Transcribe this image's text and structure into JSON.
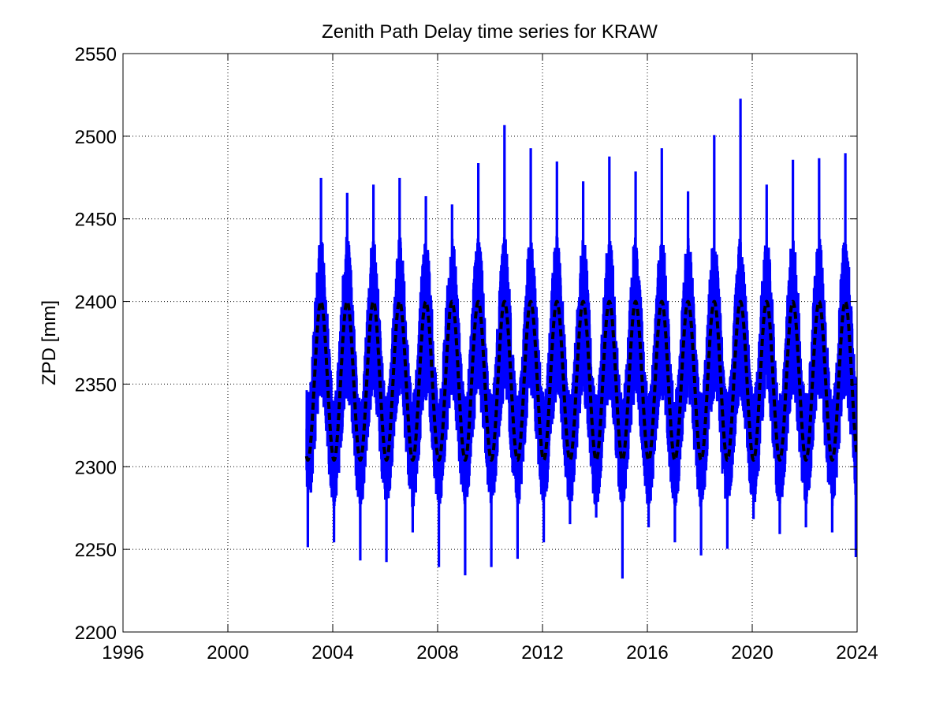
{
  "chart_data": {
    "type": "line",
    "title": "Zenith Path Delay time series for KRAW",
    "xlabel": "",
    "ylabel": "ZPD [mm]",
    "xlim": [
      1996,
      2024
    ],
    "ylim": [
      2200,
      2550
    ],
    "x_ticks": [
      "1996",
      "2000",
      "2004",
      "2008",
      "2012",
      "2016",
      "2020",
      "2024"
    ],
    "y_ticks": [
      "2200",
      "2250",
      "2300",
      "2350",
      "2400",
      "2450",
      "2500",
      "2550"
    ],
    "grid": "on",
    "colors": {
      "observed": "#0000ff",
      "seasonal_model": "#000000"
    },
    "series": [
      {
        "style": "solid",
        "color": "#0000ff",
        "data_range": [
          2003.0,
          2024.0
        ],
        "seasonal_envelope": {
          "summer_max": [
            [
              2003.55,
              2474
            ],
            [
              2004.55,
              2465
            ],
            [
              2005.55,
              2470
            ],
            [
              2006.55,
              2474
            ],
            [
              2007.55,
              2463
            ],
            [
              2008.55,
              2458
            ],
            [
              2009.55,
              2483
            ],
            [
              2010.55,
              2506
            ],
            [
              2011.55,
              2492
            ],
            [
              2012.55,
              2484
            ],
            [
              2013.55,
              2472
            ],
            [
              2014.55,
              2487
            ],
            [
              2015.55,
              2478
            ],
            [
              2016.55,
              2492
            ],
            [
              2017.55,
              2466
            ],
            [
              2018.55,
              2500
            ],
            [
              2019.55,
              2522
            ],
            [
              2020.55,
              2470
            ],
            [
              2021.55,
              2485
            ],
            [
              2022.55,
              2486
            ],
            [
              2023.55,
              2489
            ]
          ],
          "winter_min": [
            [
              2003.05,
              2252
            ],
            [
              2004.05,
              2255
            ],
            [
              2005.05,
              2244
            ],
            [
              2006.05,
              2243
            ],
            [
              2007.05,
              2261
            ],
            [
              2008.05,
              2240
            ],
            [
              2009.05,
              2235
            ],
            [
              2010.05,
              2240
            ],
            [
              2011.05,
              2245
            ],
            [
              2012.05,
              2255
            ],
            [
              2013.05,
              2266
            ],
            [
              2014.05,
              2270
            ],
            [
              2015.05,
              2233
            ],
            [
              2016.05,
              2264
            ],
            [
              2017.05,
              2255
            ],
            [
              2018.05,
              2247
            ],
            [
              2019.05,
              2251
            ],
            [
              2020.05,
              2269
            ],
            [
              2021.05,
              2260
            ],
            [
              2022.05,
              2264
            ],
            [
              2023.05,
              2261
            ],
            [
              2023.95,
              2246
            ]
          ],
          "typical_summer_range": [
            2340,
            2440
          ],
          "typical_winter_range": [
            2275,
            2345
          ]
        }
      },
      {
        "style": "dashed",
        "color": "#000000",
        "model": "seasonal",
        "mean": 2352,
        "amplitude": 48,
        "period_years": 1.0,
        "peak_phase_year_fraction": 0.55,
        "data_range": [
          2003.0,
          2024.0
        ]
      }
    ]
  }
}
